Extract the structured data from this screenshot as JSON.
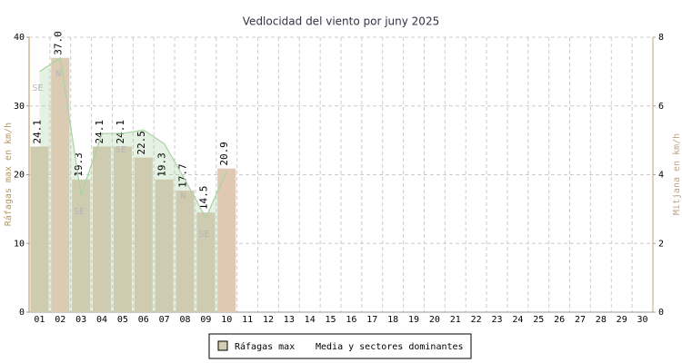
{
  "chart_data": {
    "type": "bar",
    "title": "Vedlocidad del viento por juny 2025",
    "ylabel": "Ráfagas max en km/h",
    "y2label": "Mitjana en km/h",
    "categories": [
      "01",
      "02",
      "03",
      "04",
      "05",
      "06",
      "07",
      "08",
      "09",
      "10",
      "11",
      "12",
      "13",
      "14",
      "15",
      "16",
      "17",
      "18",
      "19",
      "20",
      "21",
      "22",
      "23",
      "24",
      "25",
      "26",
      "27",
      "28",
      "29",
      "30"
    ],
    "series": [
      {
        "name": "Ráfagas max",
        "color": "#d3cdb4",
        "colors": [
          "#cfcbb1",
          "#dccbb3",
          "#cfcbb1",
          "#cfcbb1",
          "#cfcbb1",
          "#cfcbb1",
          "#cfcbb1",
          "#cfcbb1",
          "#cfcbb1",
          "#dfc9b3",
          null,
          null,
          null,
          null,
          null,
          null,
          null,
          null,
          null,
          null,
          null,
          null,
          null,
          null,
          null,
          null,
          null,
          null,
          null,
          null
        ],
        "values": [
          24.1,
          37.0,
          19.3,
          24.1,
          24.1,
          22.5,
          19.3,
          17.7,
          14.5,
          20.9,
          null,
          null,
          null,
          null,
          null,
          null,
          null,
          null,
          null,
          null,
          null,
          null,
          null,
          null,
          null,
          null,
          null,
          null,
          null,
          null
        ],
        "value_labels": [
          "24.1",
          "37.0",
          "19.3",
          "24.1",
          "24.1",
          "22.5",
          "19.3",
          "17.7",
          "14.5",
          "20.9",
          null,
          null,
          null,
          null,
          null,
          null,
          null,
          null,
          null,
          null,
          null,
          null,
          null,
          null,
          null,
          null,
          null,
          null,
          null,
          null
        ]
      },
      {
        "name": "Media y sectores dominantes",
        "color": "#a9d3a3",
        "axis": "y2",
        "values": [
          7.0,
          7.4,
          3.4,
          5.2,
          5.2,
          5.3,
          4.9,
          3.85,
          2.75,
          4.1,
          null,
          null,
          null,
          null,
          null,
          null,
          null,
          null,
          null,
          null,
          null,
          null,
          null,
          null,
          null,
          null,
          null,
          null,
          null,
          null
        ],
        "labels": [
          "SE",
          "N",
          "SE",
          null,
          "SE",
          null,
          null,
          "N",
          "SE",
          null,
          null,
          null,
          null,
          null,
          null,
          null,
          null,
          null,
          null,
          null,
          null,
          null,
          null,
          null,
          null,
          null,
          null,
          null,
          null,
          null
        ]
      }
    ],
    "ylim": [
      0,
      40
    ],
    "yticks": [
      0,
      10,
      20,
      30,
      40
    ],
    "y2lim": [
      0,
      8
    ],
    "y2ticks": [
      0,
      2,
      4,
      6,
      8
    ],
    "grid": true
  }
}
